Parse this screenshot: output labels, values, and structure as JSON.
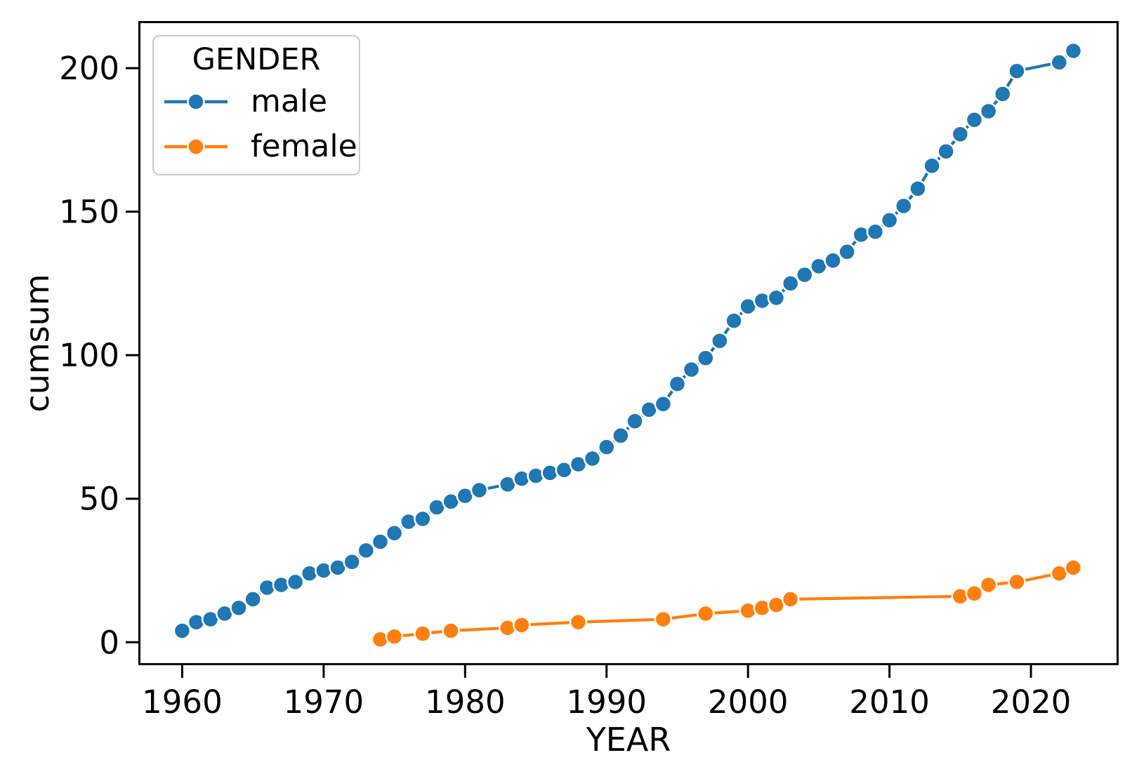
{
  "chart_data": {
    "type": "line",
    "title": "",
    "xlabel": "YEAR",
    "ylabel": "cumsum",
    "legend_title": "GENDER",
    "legend_position": "upper left",
    "grid": false,
    "marker": "circle",
    "xlim": [
      1956.9,
      2026.2
    ],
    "ylim": [
      -8.0,
      216.4
    ],
    "x_ticks": [
      1960,
      1970,
      1980,
      1990,
      2000,
      2010,
      2020
    ],
    "y_ticks": [
      0,
      50,
      100,
      150,
      200
    ],
    "axis_color": "#000000",
    "background_color": "#ffffff",
    "series": [
      {
        "name": "male",
        "color": "#1f77b4",
        "points": [
          [
            1960,
            4
          ],
          [
            1961,
            7
          ],
          [
            1962,
            8
          ],
          [
            1963,
            10
          ],
          [
            1964,
            12
          ],
          [
            1965,
            15
          ],
          [
            1966,
            19
          ],
          [
            1967,
            20
          ],
          [
            1968,
            21
          ],
          [
            1969,
            24
          ],
          [
            1970,
            25
          ],
          [
            1971,
            26
          ],
          [
            1972,
            28
          ],
          [
            1973,
            32
          ],
          [
            1974,
            35
          ],
          [
            1975,
            38
          ],
          [
            1976,
            42
          ],
          [
            1977,
            43
          ],
          [
            1978,
            47
          ],
          [
            1979,
            49
          ],
          [
            1980,
            51
          ],
          [
            1981,
            53
          ],
          [
            1983,
            55
          ],
          [
            1984,
            57
          ],
          [
            1985,
            58
          ],
          [
            1986,
            59
          ],
          [
            1987,
            60
          ],
          [
            1988,
            62
          ],
          [
            1989,
            64
          ],
          [
            1990,
            68
          ],
          [
            1991,
            72
          ],
          [
            1992,
            77
          ],
          [
            1993,
            81
          ],
          [
            1994,
            83
          ],
          [
            1995,
            90
          ],
          [
            1996,
            95
          ],
          [
            1997,
            99
          ],
          [
            1998,
            105
          ],
          [
            1999,
            112
          ],
          [
            2000,
            117
          ],
          [
            2001,
            119
          ],
          [
            2002,
            120
          ],
          [
            2003,
            125
          ],
          [
            2004,
            128
          ],
          [
            2005,
            131
          ],
          [
            2006,
            133
          ],
          [
            2007,
            136
          ],
          [
            2008,
            142
          ],
          [
            2009,
            143
          ],
          [
            2010,
            147
          ],
          [
            2011,
            152
          ],
          [
            2012,
            158
          ],
          [
            2013,
            166
          ],
          [
            2014,
            171
          ],
          [
            2015,
            177
          ],
          [
            2016,
            182
          ],
          [
            2017,
            185
          ],
          [
            2018,
            191
          ],
          [
            2019,
            199
          ],
          [
            2022,
            202
          ],
          [
            2023,
            206
          ]
        ]
      },
      {
        "name": "female",
        "color": "#ff7f0e",
        "points": [
          [
            1974,
            1
          ],
          [
            1975,
            2
          ],
          [
            1977,
            3
          ],
          [
            1979,
            4
          ],
          [
            1983,
            5
          ],
          [
            1984,
            6
          ],
          [
            1988,
            7
          ],
          [
            1994,
            8
          ],
          [
            1997,
            10
          ],
          [
            2000,
            11
          ],
          [
            2001,
            12
          ],
          [
            2002,
            13
          ],
          [
            2003,
            15
          ],
          [
            2015,
            16
          ],
          [
            2016,
            17
          ],
          [
            2017,
            20
          ],
          [
            2019,
            21
          ],
          [
            2022,
            24
          ],
          [
            2023,
            26
          ]
        ]
      }
    ]
  }
}
